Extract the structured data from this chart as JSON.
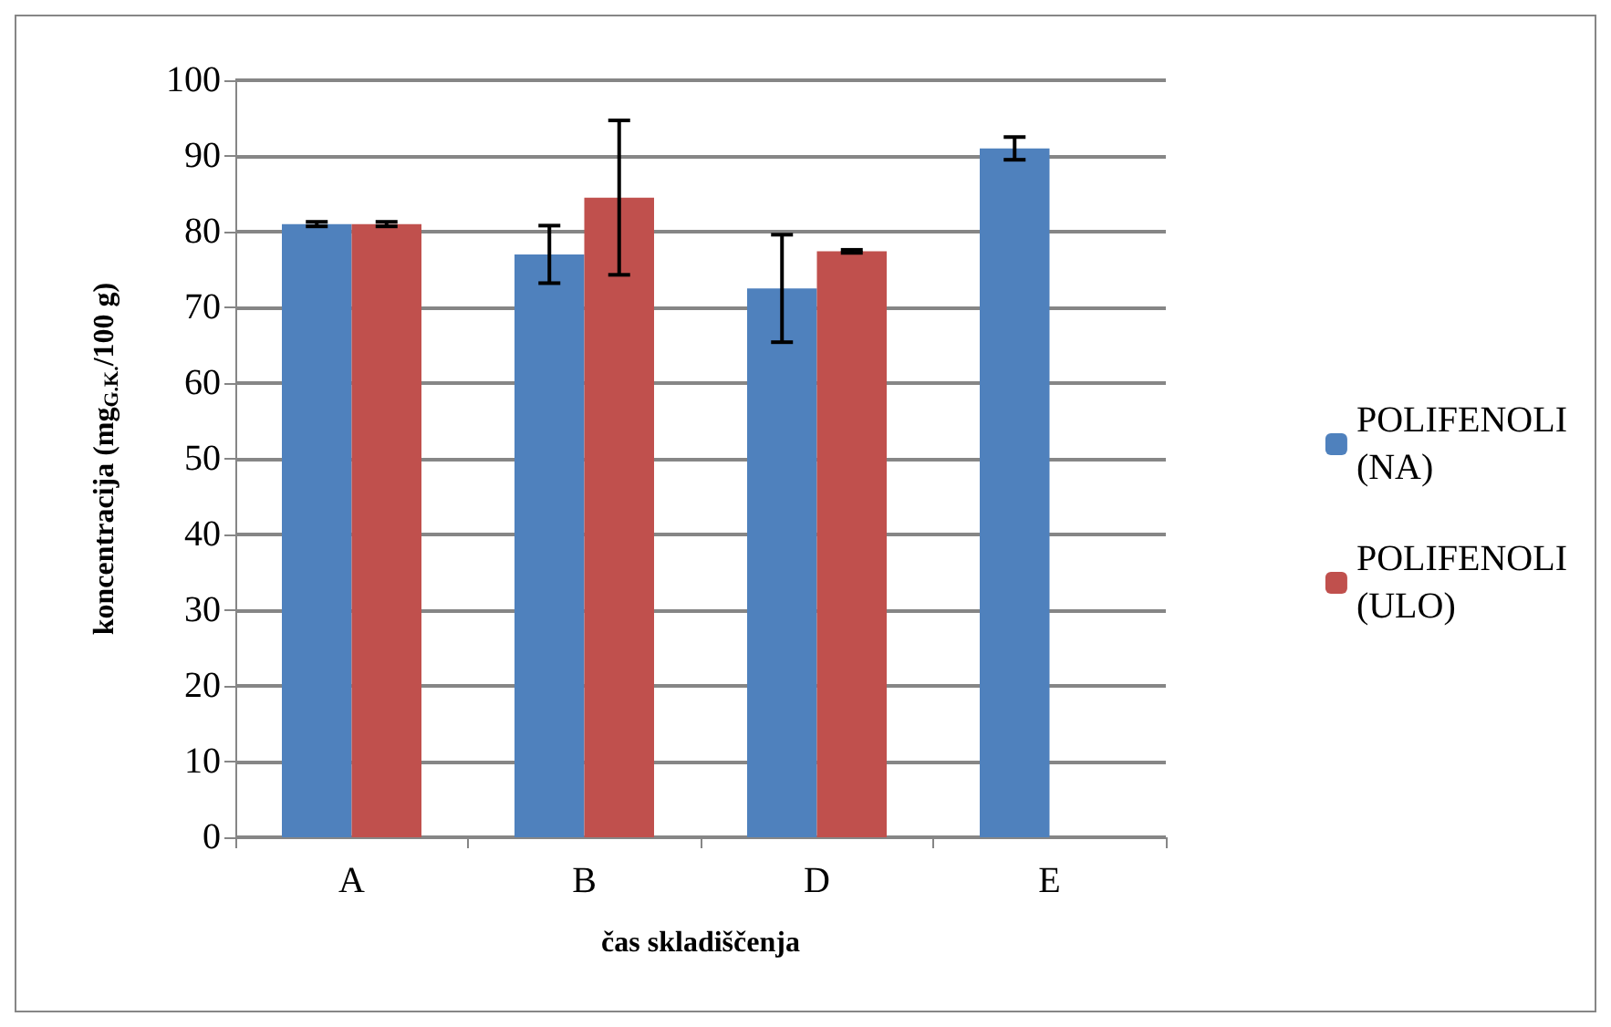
{
  "chart_data": {
    "type": "bar",
    "xlabel": "čas skladiščenja",
    "ylabel": "koncentracija (mg$_{G.K.}$/100 g)",
    "categories": [
      "A",
      "B",
      "D",
      "E"
    ],
    "series": [
      {
        "name": "POLIFENOLI (NA)",
        "color": "#4f81bd",
        "values": [
          81,
          77,
          72.5,
          91
        ],
        "errors": [
          0.3,
          3.8,
          7.1,
          1.5
        ]
      },
      {
        "name": "POLIFENOLI (ULO)",
        "color": "#c0504d",
        "values": [
          81,
          84.5,
          77.4,
          null
        ],
        "errors": [
          0.3,
          10.2,
          0.2,
          null
        ]
      }
    ],
    "ylim": [
      0,
      100
    ],
    "yticks": [
      0,
      10,
      20,
      30,
      40,
      50,
      60,
      70,
      80,
      90,
      100
    ],
    "grid": "y",
    "legend": "right"
  }
}
